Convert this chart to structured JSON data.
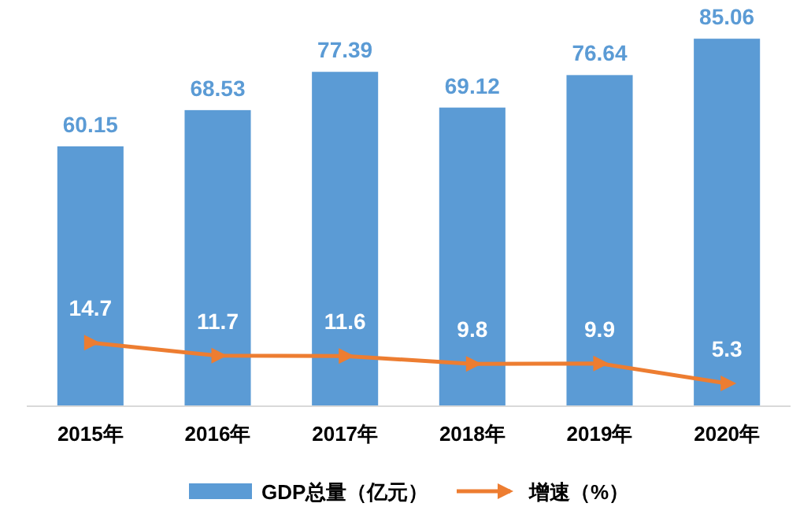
{
  "chart_data": {
    "type": "bar",
    "categories": [
      "2015年",
      "2016年",
      "2017年",
      "2018年",
      "2019年",
      "2020年"
    ],
    "series": [
      {
        "name": "GDP总量（亿元）",
        "color": "#5b9bd5",
        "values": [
          60.15,
          68.53,
          77.39,
          69.12,
          76.64,
          85.06
        ]
      },
      {
        "name": "增速（%）",
        "type": "line",
        "color": "#ed7d31",
        "values": [
          14.7,
          11.7,
          11.6,
          9.8,
          9.9,
          5.3
        ]
      }
    ],
    "ylim": [
      0,
      86
    ],
    "tick_labels": "x",
    "data_labels": true,
    "legend": "bottom",
    "marker": "triangle",
    "line_style": "solid"
  }
}
